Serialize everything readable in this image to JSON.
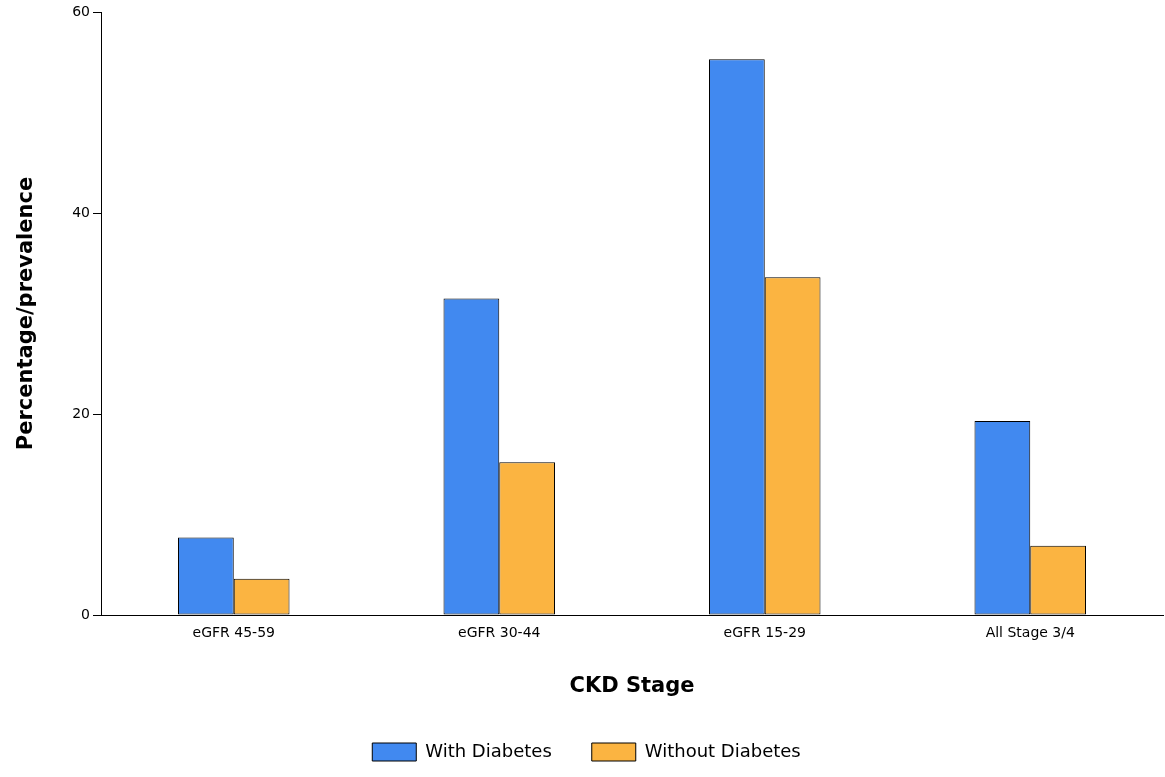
{
  "chart_data": {
    "type": "bar",
    "xlabel": "CKD Stage",
    "ylabel": "Percentage/prevalence",
    "categories": [
      "eGFR 45-59",
      "eGFR 30-44",
      "eGFR 15-29",
      "All Stage 3/4"
    ],
    "series": [
      {
        "name": "With Diabetes",
        "color": "#4189f0",
        "values": [
          7.7,
          31.5,
          55.3,
          19.3
        ]
      },
      {
        "name": "Without Diabetes",
        "color": "#fbb441",
        "values": [
          3.6,
          15.2,
          33.6,
          6.9
        ]
      }
    ],
    "ylim": [
      0,
      60
    ],
    "yticks": [
      0,
      20,
      40,
      60
    ],
    "grid": false,
    "legend": "bottom"
  }
}
